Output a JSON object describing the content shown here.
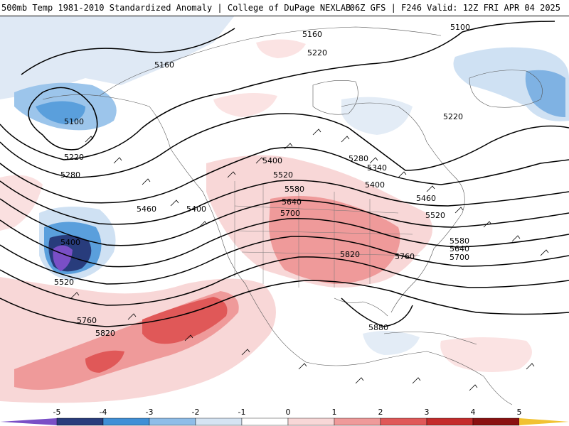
{
  "header": {
    "title": "500mb Temp 1981-2010 Standardized Anomaly | College of DuPage NEXLAB",
    "run_info": "06Z GFS | F246 Valid: 12Z FRI APR 04 2025"
  },
  "contour_labels": [
    "5100",
    "5160",
    "5220",
    "5280",
    "5340",
    "5400",
    "5460",
    "5520",
    "5580",
    "5640",
    "5700",
    "5760",
    "5820",
    "5880"
  ],
  "legend": {
    "ticks": [
      "-5",
      "-4",
      "-3",
      "-2",
      "-1",
      "0",
      "1",
      "2",
      "3",
      "4",
      "5"
    ],
    "colors": [
      "#7a4fc6",
      "#283c7c",
      "#3f8fd6",
      "#8ebde8",
      "#d5e4f3",
      "#ffffff",
      "#f8d7d7",
      "#ef9a9a",
      "#e05858",
      "#c42a2a",
      "#8a1010",
      "#f1c232"
    ]
  }
}
